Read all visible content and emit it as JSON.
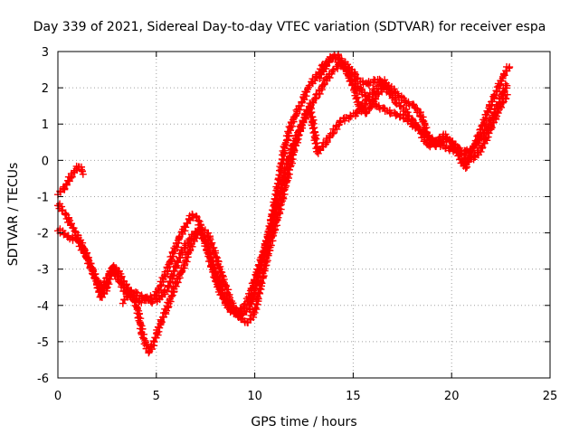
{
  "chart_data": {
    "type": "scatter",
    "title": "Day 339 of 2021, Sidereal Day-to-day VTEC variation (SDTVAR) for receiver espa",
    "xlabel": "GPS time / hours",
    "ylabel": "SDTVAR / TECUs",
    "xlim": [
      0,
      25
    ],
    "ylim": [
      -6,
      3
    ],
    "xticks": [
      "0",
      "5",
      "10",
      "15",
      "20",
      "25"
    ],
    "yticks": [
      "-6",
      "-5",
      "-4",
      "-3",
      "-2",
      "-1",
      "0",
      "1",
      "2",
      "3"
    ],
    "grid": true,
    "marker": "+",
    "color": "#ff0000",
    "series": [
      {
        "points": [
          [
            0.0,
            -1.2
          ],
          [
            0.4,
            -1.5
          ],
          [
            0.8,
            -1.9
          ],
          [
            1.2,
            -2.3
          ],
          [
            1.6,
            -2.8
          ],
          [
            2.0,
            -3.4
          ],
          [
            2.2,
            -3.8
          ],
          [
            2.5,
            -3.5
          ],
          [
            2.8,
            -2.9
          ],
          [
            3.1,
            -3.3
          ],
          [
            3.4,
            -3.6
          ],
          [
            3.8,
            -3.8
          ],
          [
            4.2,
            -3.9
          ],
          [
            4.6,
            -3.8
          ],
          [
            5.0,
            -3.7
          ],
          [
            5.5,
            -3.1
          ],
          [
            5.9,
            -2.5
          ],
          [
            6.2,
            -2.1
          ],
          [
            6.5,
            -1.8
          ],
          [
            6.8,
            -1.5
          ],
          [
            7.1,
            -1.6
          ],
          [
            7.4,
            -2.1
          ],
          [
            7.8,
            -2.9
          ],
          [
            8.2,
            -3.6
          ],
          [
            8.7,
            -4.1
          ],
          [
            9.2,
            -4.3
          ],
          [
            9.7,
            -4.1
          ],
          [
            10.0,
            -3.6
          ],
          [
            10.3,
            -2.9
          ],
          [
            10.6,
            -2.3
          ],
          [
            10.9,
            -1.5
          ],
          [
            11.2,
            -0.6
          ],
          [
            11.5,
            0.3
          ],
          [
            11.8,
            0.9
          ],
          [
            12.1,
            1.3
          ],
          [
            12.4,
            1.6
          ],
          [
            12.7,
            2.0
          ],
          [
            13.1,
            2.3
          ],
          [
            13.5,
            2.6
          ],
          [
            14.0,
            2.9
          ],
          [
            14.5,
            2.6
          ],
          [
            15.0,
            2.2
          ],
          [
            15.4,
            1.9
          ],
          [
            15.8,
            1.7
          ],
          [
            16.2,
            1.5
          ],
          [
            16.6,
            1.4
          ],
          [
            17.0,
            1.3
          ],
          [
            17.5,
            1.2
          ],
          [
            18.0,
            1.0
          ],
          [
            18.5,
            0.8
          ],
          [
            19.0,
            0.6
          ],
          [
            19.5,
            0.4
          ],
          [
            20.0,
            0.3
          ],
          [
            20.5,
            0.2
          ],
          [
            21.0,
            0.3
          ],
          [
            21.5,
            0.6
          ],
          [
            22.0,
            1.1
          ],
          [
            22.4,
            1.6
          ],
          [
            22.8,
            2.1
          ]
        ]
      },
      {
        "points": [
          [
            0.0,
            -1.9
          ],
          [
            0.5,
            -2.1
          ],
          [
            1.0,
            -2.2
          ],
          [
            1.4,
            -2.6
          ],
          [
            1.8,
            -3.1
          ],
          [
            2.2,
            -3.6
          ],
          [
            2.6,
            -3.1
          ],
          [
            3.0,
            -3.0
          ],
          [
            3.5,
            -3.5
          ],
          [
            4.0,
            -4.0
          ],
          [
            4.3,
            -4.8
          ],
          [
            4.6,
            -5.3
          ],
          [
            4.9,
            -5.0
          ],
          [
            5.2,
            -4.5
          ],
          [
            5.6,
            -4.0
          ],
          [
            6.0,
            -3.4
          ],
          [
            6.4,
            -2.9
          ],
          [
            6.8,
            -2.3
          ],
          [
            7.2,
            -1.9
          ],
          [
            7.6,
            -2.0
          ],
          [
            8.0,
            -2.6
          ],
          [
            8.4,
            -3.3
          ],
          [
            8.8,
            -3.9
          ],
          [
            9.2,
            -4.3
          ],
          [
            9.6,
            -4.5
          ],
          [
            10.0,
            -4.2
          ],
          [
            10.4,
            -3.2
          ],
          [
            10.8,
            -2.3
          ],
          [
            11.2,
            -1.5
          ],
          [
            11.6,
            -0.6
          ],
          [
            12.0,
            0.3
          ],
          [
            12.4,
            1.0
          ],
          [
            12.8,
            1.5
          ],
          [
            13.2,
            1.8
          ],
          [
            13.6,
            2.2
          ],
          [
            14.0,
            2.5
          ],
          [
            14.5,
            2.7
          ],
          [
            14.9,
            2.5
          ],
          [
            15.3,
            2.2
          ],
          [
            15.7,
            2.1
          ],
          [
            16.1,
            2.2
          ],
          [
            16.5,
            2.2
          ],
          [
            16.9,
            2.0
          ],
          [
            17.3,
            1.8
          ],
          [
            17.7,
            1.6
          ],
          [
            18.1,
            1.5
          ],
          [
            18.5,
            1.2
          ],
          [
            18.8,
            0.6
          ],
          [
            19.2,
            0.4
          ],
          [
            19.6,
            0.6
          ],
          [
            20.0,
            0.5
          ],
          [
            20.4,
            0.3
          ],
          [
            20.8,
            0.0
          ],
          [
            21.2,
            0.1
          ],
          [
            21.6,
            0.4
          ],
          [
            22.0,
            0.9
          ],
          [
            22.4,
            1.4
          ],
          [
            22.8,
            1.8
          ]
        ]
      },
      {
        "points": [
          [
            3.3,
            -3.9
          ],
          [
            3.7,
            -3.6
          ],
          [
            4.1,
            -3.7
          ],
          [
            4.4,
            -3.8
          ],
          [
            4.8,
            -3.9
          ],
          [
            5.2,
            -3.8
          ],
          [
            5.6,
            -3.5
          ],
          [
            6.0,
            -2.9
          ],
          [
            6.4,
            -2.4
          ],
          [
            6.8,
            -2.1
          ],
          [
            7.2,
            -1.9
          ],
          [
            7.6,
            -2.4
          ],
          [
            8.0,
            -3.1
          ],
          [
            8.4,
            -3.7
          ],
          [
            8.8,
            -4.1
          ],
          [
            9.2,
            -4.2
          ],
          [
            9.6,
            -3.9
          ],
          [
            10.0,
            -3.3
          ],
          [
            10.4,
            -2.6
          ],
          [
            10.8,
            -1.9
          ],
          [
            11.2,
            -1.1
          ],
          [
            11.6,
            -0.2
          ],
          [
            12.0,
            0.5
          ],
          [
            12.4,
            1.0
          ],
          [
            12.8,
            1.5
          ],
          [
            13.2,
            0.2
          ],
          [
            13.6,
            0.5
          ],
          [
            14.0,
            0.8
          ],
          [
            14.4,
            1.1
          ],
          [
            14.8,
            1.2
          ],
          [
            15.2,
            1.3
          ],
          [
            15.6,
            1.6
          ],
          [
            16.0,
            1.9
          ],
          [
            16.4,
            2.1
          ],
          [
            16.8,
            1.9
          ],
          [
            17.2,
            1.6
          ],
          [
            17.6,
            1.4
          ],
          [
            18.0,
            1.1
          ],
          [
            18.4,
            0.8
          ],
          [
            18.8,
            0.4
          ],
          [
            19.2,
            0.5
          ],
          [
            19.6,
            0.7
          ],
          [
            20.0,
            0.5
          ],
          [
            20.4,
            0.1
          ],
          [
            20.7,
            -0.2
          ],
          [
            21.0,
            0.2
          ],
          [
            21.4,
            0.7
          ],
          [
            21.8,
            1.3
          ],
          [
            22.2,
            1.8
          ],
          [
            22.6,
            2.3
          ],
          [
            22.9,
            2.6
          ]
        ]
      },
      {
        "points": [
          [
            0.0,
            -0.9
          ],
          [
            0.3,
            -0.8
          ],
          [
            0.6,
            -0.5
          ],
          [
            0.9,
            -0.25
          ],
          [
            1.1,
            -0.15
          ],
          [
            1.3,
            -0.35
          ]
        ]
      },
      {
        "points": [
          [
            13.3,
            2.3
          ],
          [
            13.6,
            2.6
          ],
          [
            13.9,
            2.8
          ],
          [
            14.2,
            2.9
          ],
          [
            14.5,
            2.7
          ],
          [
            14.8,
            2.3
          ],
          [
            15.1,
            1.9
          ],
          [
            15.3,
            1.5
          ],
          [
            15.6,
            1.3
          ],
          [
            15.9,
            1.5
          ],
          [
            16.3,
            1.9
          ],
          [
            16.7,
            2.0
          ]
        ]
      }
    ]
  }
}
